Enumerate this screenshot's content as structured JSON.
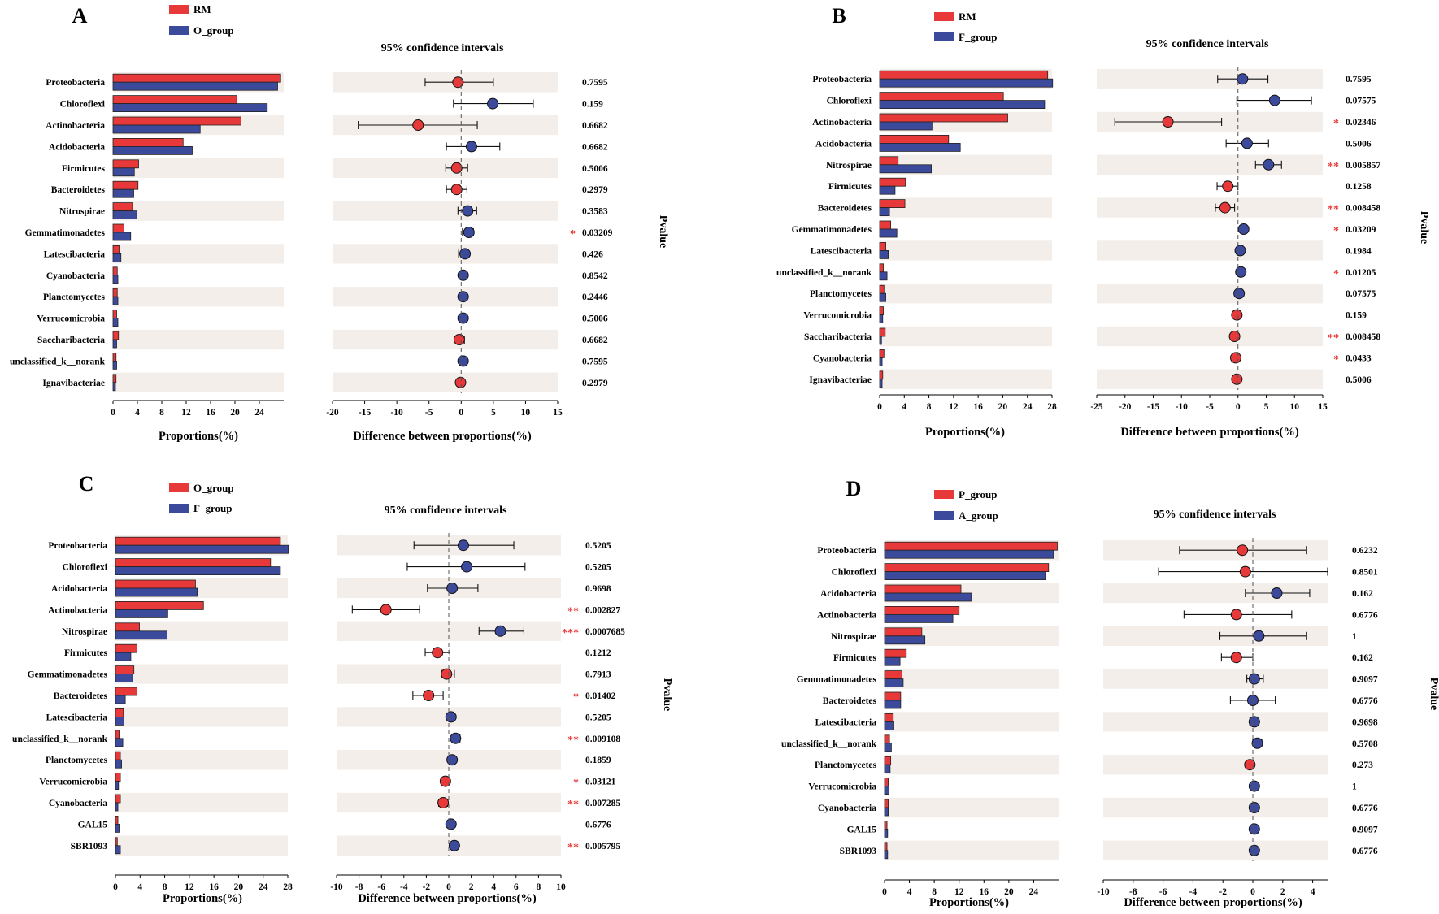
{
  "colors": {
    "red": "#e8393a",
    "blue": "#3c4a9c",
    "stripe": "#f4eeeb",
    "star": "#e8413f"
  },
  "titles": {
    "ci": "95% confidence intervals",
    "proportions": "Proportions(%)",
    "difference": "Difference between proportions(%)",
    "pvalue": "Pvalue"
  },
  "chart_data": [
    {
      "type": "bar",
      "panel": "A",
      "legend": [
        "RM",
        "O_group"
      ],
      "categories": [
        "Proteobacteria",
        "Chloroflexi",
        "Actinobacteria",
        "Acidobacteria",
        "Firmicutes",
        "Bacteroidetes",
        "Nitrospirae",
        "Gemmatimonadetes",
        "Latescibacteria",
        "Cyanobacteria",
        "Planctomycetes",
        "Verrucomicrobia",
        "Saccharibacteria",
        "unclassified_k__norank",
        "Ignavibacteriae"
      ],
      "series": [
        {
          "name": "RM",
          "values": [
            27.5,
            20.3,
            21.0,
            11.5,
            4.2,
            4.1,
            3.2,
            1.8,
            1.0,
            0.7,
            0.7,
            0.6,
            0.9,
            0.5,
            0.5
          ]
        },
        {
          "name": "O_group",
          "values": [
            27.0,
            25.3,
            14.3,
            13.0,
            3.5,
            3.4,
            3.9,
            2.9,
            1.3,
            0.8,
            0.8,
            0.8,
            0.6,
            0.6,
            0.4
          ]
        }
      ],
      "prop_ticks": [
        0,
        4,
        8,
        12,
        16,
        20,
        24
      ],
      "prop_max": 28,
      "diff": [
        -0.5,
        4.9,
        -6.7,
        1.6,
        -0.7,
        -0.7,
        1.0,
        1.2,
        0.6,
        0.3,
        0.3,
        0.3,
        -0.3,
        0.3,
        -0.1
      ],
      "ci_low": [
        -5.6,
        -1.2,
        -16,
        -2.3,
        -2.4,
        -2.3,
        -0.5,
        0.2,
        -0.4,
        -0.1,
        -0.1,
        -0.1,
        -1.1,
        -0.1,
        -0.3
      ],
      "ci_high": [
        5,
        11.2,
        2.5,
        6,
        1,
        0.9,
        2.4,
        1.9,
        1.1,
        0.6,
        0.6,
        0.6,
        0.5,
        0.6,
        0.3
      ],
      "diff_ticks": [
        -20,
        -15,
        -10,
        -5,
        0,
        5,
        10,
        15
      ],
      "diff_range": [
        -20,
        15
      ],
      "pvalues": [
        "0.7595",
        "0.159",
        "0.6682",
        "0.6682",
        "0.5006",
        "0.2979",
        "0.3583",
        "0.03209",
        "0.426",
        "0.8542",
        "0.2446",
        "0.5006",
        "0.6682",
        "0.7595",
        "0.2979"
      ],
      "stars": [
        "",
        "",
        "",
        "",
        "",
        "",
        "",
        "*",
        "",
        "",
        "",
        "",
        "",
        "",
        ""
      ]
    },
    {
      "type": "bar",
      "panel": "B",
      "legend": [
        "RM",
        "F_group"
      ],
      "categories": [
        "Proteobacteria",
        "Chloroflexi",
        "Actinobacteria",
        "Acidobacteria",
        "Nitrospirae",
        "Firmicutes",
        "Bacteroidetes",
        "Gemmatimonadetes",
        "Latescibacteria",
        "unclassified_k__norank",
        "Planctomycetes",
        "Verrucomicrobia",
        "Saccharibacteria",
        "Cyanobacteria",
        "Ignavibacteriae"
      ],
      "series": [
        {
          "name": "RM",
          "values": [
            27.3,
            20.1,
            20.8,
            11.2,
            3.0,
            4.2,
            4.1,
            1.8,
            1.0,
            0.6,
            0.7,
            0.6,
            0.9,
            0.7,
            0.5
          ]
        },
        {
          "name": "F_group",
          "values": [
            28.1,
            26.8,
            8.5,
            13.1,
            8.4,
            2.5,
            1.6,
            2.8,
            1.4,
            1.2,
            1.0,
            0.5,
            0.3,
            0.4,
            0.4
          ]
        }
      ],
      "prop_ticks": [
        0,
        4,
        8,
        12,
        16,
        20,
        24,
        28
      ],
      "prop_max": 28,
      "diff": [
        0.8,
        6.5,
        -12.4,
        1.6,
        5.4,
        -1.8,
        -2.3,
        1.0,
        0.4,
        0.5,
        0.2,
        -0.2,
        -0.6,
        -0.4,
        -0.2
      ],
      "ci_low": [
        -3.6,
        -0.2,
        -21.8,
        -2.1,
        3.1,
        -3.7,
        -4,
        0.6,
        0.1,
        0.1,
        -0.1,
        -0.5,
        -1.2,
        -0.8,
        -0.5
      ],
      "ci_high": [
        5.3,
        13,
        -2.9,
        5.4,
        7.7,
        0,
        -0.6,
        1.4,
        0.7,
        0.9,
        0.6,
        0.1,
        0,
        0,
        0.1
      ],
      "diff_ticks": [
        -25,
        -20,
        -15,
        -10,
        -5,
        0,
        5,
        10,
        15
      ],
      "diff_range": [
        -25,
        15
      ],
      "pvalues": [
        "0.7595",
        "0.07575",
        "0.02346",
        "0.5006",
        "0.005857",
        "0.1258",
        "0.008458",
        "0.03209",
        "0.1984",
        "0.01205",
        "0.07575",
        "0.159",
        "0.008458",
        "0.0433",
        "0.5006"
      ],
      "stars": [
        "",
        "",
        "*",
        "",
        "**",
        "",
        "**",
        "*",
        "",
        "*",
        "",
        "",
        "**",
        "*",
        ""
      ]
    },
    {
      "type": "bar",
      "panel": "C",
      "legend": [
        "O_group",
        "F_group"
      ],
      "categories": [
        "Proteobacteria",
        "Chloroflexi",
        "Acidobacteria",
        "Actinobacteria",
        "Nitrospirae",
        "Firmicutes",
        "Gemmatimonadetes",
        "Bacteroidetes",
        "Latescibacteria",
        "unclassified_k__norank",
        "Planctomycetes",
        "Verrucomicrobia",
        "Cyanobacteria",
        "GAL15",
        "SBR1093"
      ],
      "series": [
        {
          "name": "O_group",
          "values": [
            26.8,
            25.2,
            13.0,
            14.3,
            3.9,
            3.5,
            3.0,
            3.5,
            1.3,
            0.6,
            0.8,
            0.8,
            0.8,
            0.4,
            0.3
          ]
        },
        {
          "name": "F_group",
          "values": [
            28.1,
            26.8,
            13.3,
            8.5,
            8.4,
            2.5,
            2.8,
            1.6,
            1.4,
            1.2,
            1.0,
            0.5,
            0.4,
            0.6,
            0.8
          ]
        }
      ],
      "prop_ticks": [
        0,
        4,
        8,
        12,
        16,
        20,
        24,
        28
      ],
      "prop_max": 28,
      "diff": [
        1.3,
        1.6,
        0.3,
        -5.6,
        4.6,
        -1.0,
        -0.2,
        -1.8,
        0.2,
        0.6,
        0.3,
        -0.3,
        -0.5,
        0.2,
        0.5
      ],
      "ci_low": [
        -3.1,
        -3.7,
        -1.9,
        -8.6,
        2.7,
        -2.1,
        -0.6,
        -3.2,
        -0.1,
        0.3,
        0,
        -0.6,
        -0.9,
        -0.1,
        0.3
      ],
      "ci_high": [
        5.8,
        6.8,
        2.6,
        -2.6,
        6.7,
        0.1,
        0.5,
        -0.5,
        0.5,
        1,
        0.6,
        0,
        -0.1,
        0.5,
        0.8
      ],
      "diff_ticks": [
        -10,
        -8,
        -6,
        -4,
        -2,
        0,
        2,
        4,
        6,
        8,
        10
      ],
      "diff_range": [
        -10,
        10
      ],
      "pvalues": [
        "0.5205",
        "0.5205",
        "0.9698",
        "0.002827",
        "0.0007685",
        "0.1212",
        "0.7913",
        "0.01402",
        "0.5205",
        "0.009108",
        "0.1859",
        "0.03121",
        "0.007285",
        "0.6776",
        "0.005795"
      ],
      "stars": [
        "",
        "",
        "",
        "**",
        "***",
        "",
        "",
        "*",
        "",
        "**",
        "",
        "*",
        "**",
        "",
        "**"
      ]
    },
    {
      "type": "bar",
      "panel": "D",
      "legend": [
        "P_group",
        "A_group"
      ],
      "categories": [
        "Proteobacteria",
        "Chloroflexi",
        "Acidobacteria",
        "Actinobacteria",
        "Nitrospirae",
        "Firmicutes",
        "Gemmatimonadetes",
        "Bacteroidetes",
        "Latescibacteria",
        "unclassified_k__norank",
        "Planctomycetes",
        "Verrucomicrobia",
        "Cyanobacteria",
        "GAL15",
        "SBR1093"
      ],
      "series": [
        {
          "name": "P_group",
          "values": [
            27.8,
            26.4,
            12.3,
            12.0,
            6.0,
            3.5,
            2.8,
            2.6,
            1.4,
            0.8,
            1.0,
            0.6,
            0.6,
            0.4,
            0.4
          ]
        },
        {
          "name": "A_group",
          "values": [
            27.2,
            25.9,
            14.0,
            11.0,
            6.5,
            2.5,
            3.0,
            2.6,
            1.5,
            1.1,
            0.9,
            0.7,
            0.6,
            0.5,
            0.5
          ]
        }
      ],
      "prop_ticks": [
        0,
        4,
        8,
        12,
        16,
        20,
        24
      ],
      "prop_max": 28,
      "diff": [
        -0.7,
        -0.5,
        1.6,
        -1.1,
        0.4,
        -1.1,
        0.1,
        0.0,
        0.1,
        0.3,
        -0.2,
        0.1,
        0.1,
        0.1,
        0.1
      ],
      "ci_low": [
        -4.9,
        -6.3,
        -0.5,
        -4.6,
        -2.2,
        -2.1,
        -0.4,
        -1.5,
        -0.2,
        0,
        -0.4,
        -0.1,
        -0.2,
        -0.1,
        -0.1
      ],
      "ci_high": [
        3.6,
        5,
        3.8,
        2.6,
        3.6,
        0,
        0.7,
        1.5,
        0.4,
        0.6,
        0,
        0.3,
        0.4,
        0.4,
        0.3
      ],
      "diff_ticks": [
        -10,
        -8,
        -6,
        -4,
        -2,
        0,
        2,
        4
      ],
      "diff_range": [
        -10,
        5
      ],
      "pvalues": [
        "0.6232",
        "0.8501",
        "0.162",
        "0.6776",
        "1",
        "0.162",
        "0.9097",
        "0.6776",
        "0.9698",
        "0.5708",
        "0.273",
        "1",
        "0.6776",
        "0.9097",
        "0.6776"
      ],
      "stars": [
        "",
        "",
        "",
        "",
        "",
        "",
        "",
        "",
        "",
        "",
        "",
        "",
        "",
        "",
        ""
      ]
    }
  ]
}
